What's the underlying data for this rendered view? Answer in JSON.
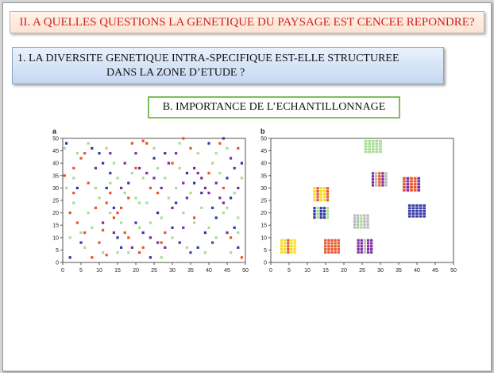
{
  "slide": {
    "title": "II. A QUELLES QUESTIONS LA GENETIQUE DU PAYSAGE EST CENCEE REPONDRE?",
    "question_line1": "1. LA DIVERSITE GENETIQUE INTRA-SPECIFIQUE EST-ELLE STRUCTUREE",
    "question_line2": "DANS LA ZONE D’ETUDE ?",
    "section_label": "B. IMPORTANCE DE L’ECHANTILLONNAGE"
  },
  "colors": {
    "title_text": "#d0201e",
    "orange": "#e8542a",
    "blue": "#3238a8",
    "purple": "#7a2da0",
    "light_green": "#a8dc94",
    "yellow": "#f6de1c",
    "gray": "#b8b8b8",
    "section_border": "#7fbf5a"
  },
  "chart_data": [
    {
      "type": "scatter",
      "panel_label": "a",
      "xlim": [
        0,
        50
      ],
      "ylim": [
        0,
        50
      ],
      "x_ticks": [
        0,
        5,
        10,
        15,
        20,
        25,
        30,
        35,
        40,
        45,
        50
      ],
      "y_ticks": [
        0,
        5,
        10,
        15,
        20,
        25,
        30,
        35,
        40,
        45,
        50
      ],
      "grid": false,
      "sampling": "random",
      "series": [
        {
          "color": "orange",
          "points": [
            [
              0.5,
              35
            ],
            [
              3,
              38
            ],
            [
              5,
              42
            ],
            [
              6,
              44
            ],
            [
              2,
              20
            ],
            [
              4,
              16
            ],
            [
              6,
              12
            ],
            [
              8,
              2
            ],
            [
              10,
              8
            ],
            [
              11,
              13
            ],
            [
              12,
              24
            ],
            [
              13,
              28
            ],
            [
              14,
              18
            ],
            [
              15,
              20
            ],
            [
              16,
              22
            ],
            [
              17,
              12
            ],
            [
              18,
              26
            ],
            [
              19,
              48
            ],
            [
              20,
              38
            ],
            [
              21,
              4
            ],
            [
              22,
              6
            ],
            [
              23,
              48
            ],
            [
              24,
              30
            ],
            [
              26,
              28
            ],
            [
              27,
              8
            ],
            [
              28,
              12
            ],
            [
              30,
              40
            ],
            [
              33,
              50
            ],
            [
              35,
              46
            ],
            [
              40,
              36
            ],
            [
              44,
              30
            ],
            [
              46,
              10
            ],
            [
              48,
              46
            ],
            [
              49,
              2
            ],
            [
              43,
              48
            ],
            [
              22,
              49
            ],
            [
              7,
              32
            ],
            [
              9,
              22
            ],
            [
              3,
              28
            ],
            [
              36,
              18
            ],
            [
              18,
              10
            ],
            [
              12,
              3
            ]
          ]
        },
        {
          "color": "blue",
          "points": [
            [
              1,
              48
            ],
            [
              2,
              2
            ],
            [
              4,
              30
            ],
            [
              8,
              46
            ],
            [
              10,
              44
            ],
            [
              11,
              40
            ],
            [
              12,
              30
            ],
            [
              14,
              22
            ],
            [
              15,
              10
            ],
            [
              16,
              6
            ],
            [
              18,
              32
            ],
            [
              20,
              16
            ],
            [
              22,
              12
            ],
            [
              24,
              2
            ],
            [
              26,
              20
            ],
            [
              28,
              44
            ],
            [
              30,
              14
            ],
            [
              32,
              8
            ],
            [
              34,
              36
            ],
            [
              36,
              32
            ],
            [
              38,
              28
            ],
            [
              40,
              48
            ],
            [
              41,
              22
            ],
            [
              42,
              18
            ],
            [
              44,
              50
            ],
            [
              45,
              34
            ],
            [
              46,
              26
            ],
            [
              47,
              14
            ],
            [
              48,
              6
            ],
            [
              49,
              40
            ],
            [
              13,
              36
            ],
            [
              25,
              42
            ],
            [
              37,
              6
            ],
            [
              31,
              24
            ],
            [
              5,
              8
            ],
            [
              39,
              12
            ]
          ]
        },
        {
          "color": "purple",
          "points": [
            [
              9,
              38
            ],
            [
              13,
              44
            ],
            [
              17,
              40
            ],
            [
              21,
              38
            ],
            [
              23,
              36
            ],
            [
              25,
              34
            ],
            [
              27,
              30
            ],
            [
              29,
              40
            ],
            [
              31,
              44
            ],
            [
              33,
              32
            ],
            [
              34,
              26
            ],
            [
              36,
              38
            ],
            [
              37,
              36
            ],
            [
              38,
              34
            ],
            [
              39,
              30
            ],
            [
              40,
              28
            ],
            [
              42,
              32
            ],
            [
              43,
              26
            ],
            [
              44,
              24
            ],
            [
              45,
              12
            ],
            [
              46,
              42
            ],
            [
              47,
              38
            ],
            [
              48,
              30
            ],
            [
              11,
              16
            ],
            [
              14,
              12
            ],
            [
              19,
              6
            ],
            [
              24,
              10
            ],
            [
              26,
              8
            ],
            [
              28,
              6
            ],
            [
              33,
              14
            ],
            [
              35,
              4
            ],
            [
              41,
              8
            ],
            [
              16,
              30
            ],
            [
              20,
              44
            ],
            [
              30,
              22
            ]
          ]
        },
        {
          "color": "light_green",
          "points": [
            [
              0.5,
              46
            ],
            [
              1,
              30
            ],
            [
              3,
              24
            ],
            [
              5,
              12
            ],
            [
              6,
              6
            ],
            [
              7,
              48
            ],
            [
              9,
              30
            ],
            [
              10,
              26
            ],
            [
              11,
              4
            ],
            [
              12,
              46
            ],
            [
              13,
              20
            ],
            [
              14,
              40
            ],
            [
              15,
              34
            ],
            [
              16,
              16
            ],
            [
              17,
              28
            ],
            [
              18,
              4
            ],
            [
              19,
              36
            ],
            [
              20,
              26
            ],
            [
              21,
              14
            ],
            [
              22,
              34
            ],
            [
              23,
              24
            ],
            [
              24,
              16
            ],
            [
              25,
              46
            ],
            [
              26,
              38
            ],
            [
              27,
              18
            ],
            [
              28,
              34
            ],
            [
              29,
              26
            ],
            [
              30,
              10
            ],
            [
              31,
              30
            ],
            [
              32,
              48
            ],
            [
              33,
              20
            ],
            [
              34,
              6
            ],
            [
              35,
              28
            ],
            [
              36,
              16
            ],
            [
              37,
              44
            ],
            [
              38,
              22
            ],
            [
              39,
              4
            ],
            [
              40,
              14
            ],
            [
              41,
              40
            ],
            [
              42,
              10
            ],
            [
              43,
              36
            ],
            [
              44,
              20
            ],
            [
              45,
              46
            ],
            [
              46,
              4
            ],
            [
              47,
              28
            ],
            [
              48,
              18
            ],
            [
              49,
              34
            ],
            [
              2,
              10
            ],
            [
              4,
              44
            ],
            [
              8,
              14
            ],
            [
              7,
              20
            ],
            [
              13,
              32
            ],
            [
              21,
              24
            ],
            [
              27,
              2
            ],
            [
              32,
              38
            ],
            [
              42,
              44
            ],
            [
              45,
              22
            ],
            [
              48,
              12
            ],
            [
              3,
              34
            ],
            [
              15,
              4
            ]
          ]
        }
      ]
    },
    {
      "type": "scatter",
      "panel_label": "b",
      "xlim": [
        0,
        50
      ],
      "ylim": [
        0,
        50
      ],
      "x_ticks": [
        0,
        5,
        10,
        15,
        20,
        25,
        30,
        35,
        40,
        45,
        50
      ],
      "y_ticks": [
        0,
        5,
        10,
        15,
        20,
        25,
        30,
        35,
        40,
        45,
        50
      ],
      "grid": false,
      "sampling": "clustered",
      "clusters": [
        {
          "x": [
            2.5,
            7
          ],
          "y": [
            3.5,
            9.5
          ],
          "mix": [
            "yellow",
            "yellow",
            "orange",
            "blue",
            "yellow",
            "light_green"
          ]
        },
        {
          "x": [
            14.5,
            19
          ],
          "y": [
            3.5,
            9.5
          ],
          "mix": [
            "orange",
            "orange",
            "orange",
            "purple",
            "orange",
            "light_green"
          ]
        },
        {
          "x": [
            23.5,
            28
          ],
          "y": [
            3.5,
            9.5
          ],
          "mix": [
            "purple",
            "purple",
            "gray",
            "purple",
            "purple",
            "orange"
          ]
        },
        {
          "x": [
            11.5,
            16
          ],
          "y": [
            17.5,
            22.5
          ],
          "mix": [
            "blue",
            "gray",
            "blue",
            "gray",
            "light_green",
            "purple"
          ]
        },
        {
          "x": [
            11.5,
            16
          ],
          "y": [
            24.5,
            30.5
          ],
          "mix": [
            "yellow",
            "yellow",
            "yellow",
            "gray",
            "orange",
            "blue"
          ]
        },
        {
          "x": [
            22.5,
            27
          ],
          "y": [
            13.5,
            19.5
          ],
          "mix": [
            "gray",
            "gray",
            "light_green",
            "gray",
            "gray",
            "light_green"
          ]
        },
        {
          "x": [
            27.5,
            32
          ],
          "y": [
            30.5,
            36.5
          ],
          "mix": [
            "purple",
            "gray",
            "orange",
            "purple",
            "gray",
            "light_green"
          ]
        },
        {
          "x": [
            25.5,
            30.5
          ],
          "y": [
            44,
            49.5
          ],
          "mix": [
            "light_green",
            "light_green",
            "light_green",
            "blue",
            "light_green",
            "light_green"
          ]
        },
        {
          "x": [
            36,
            41
          ],
          "y": [
            28.5,
            34.5
          ],
          "mix": [
            "orange",
            "orange",
            "orange",
            "blue",
            "purple",
            "orange"
          ]
        },
        {
          "x": [
            37.5,
            42.5
          ],
          "y": [
            18,
            23.5
          ],
          "mix": [
            "blue",
            "blue",
            "blue",
            "purple",
            "blue",
            "light_green"
          ]
        }
      ]
    }
  ]
}
